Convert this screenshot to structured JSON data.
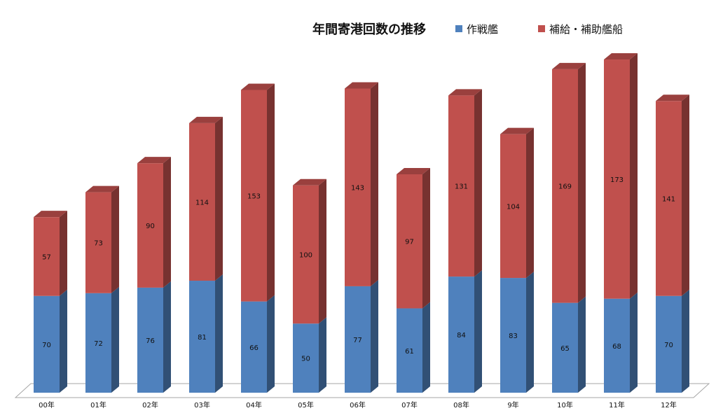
{
  "chart_data": {
    "type": "bar",
    "stacked": true,
    "title": "年間寄港回数の推移",
    "legend_position": "top-right",
    "grid": false,
    "categories": [
      "00年",
      "01年",
      "02年",
      "03年",
      "04年",
      "05年",
      "06年",
      "07年",
      "08年",
      "9年",
      "10年",
      "11年",
      "12年"
    ],
    "series": [
      {
        "name": "作戦艦",
        "color": "#4f81bd",
        "values": [
          70,
          72,
          76,
          81,
          66,
          50,
          77,
          61,
          84,
          83,
          65,
          68,
          70
        ]
      },
      {
        "name": "補給・補助艦船",
        "color": "#c0504d",
        "values": [
          57,
          73,
          90,
          114,
          153,
          100,
          143,
          97,
          131,
          104,
          169,
          173,
          141
        ]
      }
    ],
    "ylim": [
      0,
      250
    ]
  }
}
